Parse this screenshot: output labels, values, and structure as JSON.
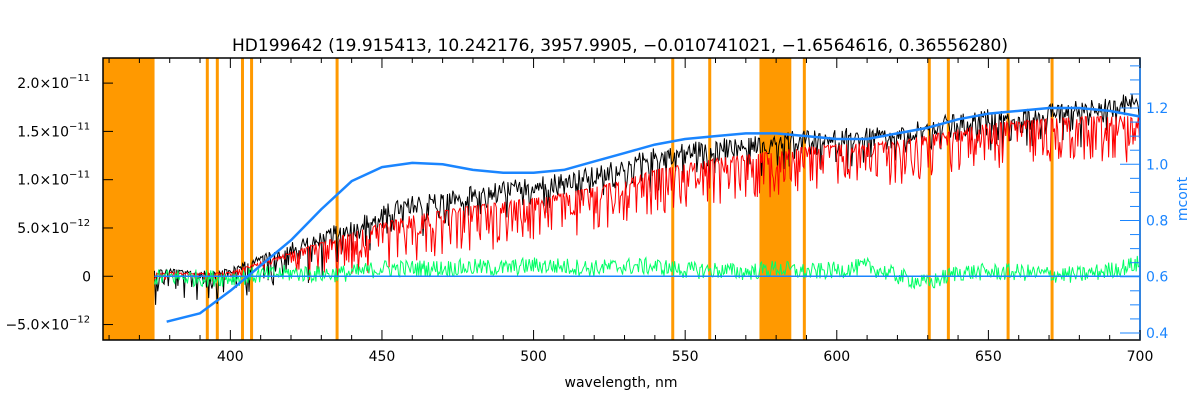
{
  "chart_data": {
    "type": "line",
    "title": "HD199642    (19.915413, 10.242176, 3957.9905, −0.010741021, −1.6564616, 0.36556280)",
    "xlabel": "wavelength, nm",
    "ylabel": "",
    "ylabel_right": "mcont",
    "xlim": [
      358,
      700
    ],
    "ylim": [
      -6.6e-12,
      2.26e-11
    ],
    "ylim_right": [
      0.375,
      1.378
    ],
    "x_ticks": [
      "400",
      "450",
      "500",
      "550",
      "600",
      "650",
      "700"
    ],
    "y_ticks": [
      {
        "value": 2e-11,
        "mant": "2.0×10",
        "exp": "−11"
      },
      {
        "value": 1.5e-11,
        "mant": "1.5×10",
        "exp": "−11"
      },
      {
        "value": 1e-11,
        "mant": "1.0×10",
        "exp": "−11"
      },
      {
        "value": 5e-12,
        "mant": "5.0×10",
        "exp": "−12"
      },
      {
        "value": 0,
        "mant": "0",
        "exp": ""
      },
      {
        "value": -5e-12,
        "mant": "−5.0×10",
        "exp": "−12"
      }
    ],
    "y_ticks_right": [
      "0.4",
      "0.6",
      "0.8",
      "1.0",
      "1.2"
    ],
    "colors": {
      "observed": "#000000",
      "model": "#ff0000",
      "residual": "#00ff66",
      "mcont": "#1a85ff",
      "masked": "#ff9900",
      "highlight": "#ffff00"
    },
    "masked_bands": [
      [
        358,
        375
      ],
      [
        574.5,
        585
      ]
    ],
    "masked_lines": [
      392.4,
      395.7,
      404,
      407,
      435.2,
      545.9,
      558.1,
      589.3,
      630.5,
      636.8,
      656.5,
      671
    ],
    "x": [
      375,
      380,
      390,
      400,
      410,
      420,
      430,
      440,
      450,
      460,
      470,
      480,
      490,
      500,
      510,
      520,
      530,
      540,
      550,
      560,
      570,
      580,
      590,
      600,
      610,
      620,
      630,
      640,
      650,
      660,
      670,
      680,
      690,
      700
    ],
    "series": [
      {
        "role": "observed",
        "axis": "left",
        "values": [
          5e-13,
          6e-13,
          4e-13,
          7e-13,
          2e-12,
          3e-12,
          4e-12,
          5e-12,
          6.5e-12,
          7.5e-12,
          8e-12,
          8.5e-12,
          9e-12,
          9.5e-12,
          1e-11,
          1.05e-11,
          1.15e-11,
          1.25e-11,
          1.3e-11,
          1.35e-11,
          1.35e-11,
          1.4e-11,
          1.45e-11,
          1.45e-11,
          1.45e-11,
          1.45e-11,
          1.55e-11,
          1.6e-11,
          1.65e-11,
          1.65e-11,
          1.7e-11,
          1.75e-11,
          1.8e-11,
          1.85e-11
        ]
      },
      {
        "role": "model",
        "axis": "left",
        "values": [
          3e-13,
          4e-13,
          3e-13,
          4e-13,
          1.5e-12,
          2.5e-12,
          3.5e-12,
          4.5e-12,
          5.5e-12,
          6.3e-12,
          6.8e-12,
          7.3e-12,
          7.7e-12,
          8.1e-12,
          8.6e-12,
          9.2e-12,
          1e-11,
          1.1e-11,
          1.16e-11,
          1.22e-11,
          1.26e-11,
          1.3e-11,
          1.34e-11,
          1.36e-11,
          1.38e-11,
          1.4e-11,
          1.46e-11,
          1.52e-11,
          1.58e-11,
          1.61e-11,
          1.63e-11,
          1.65e-11,
          1.66e-11,
          1.66e-11
        ]
      },
      {
        "role": "residual",
        "axis": "left",
        "values": [
          0,
          1e-13,
          0,
          0,
          3e-13,
          5e-13,
          4e-13,
          5e-13,
          1e-12,
          1e-12,
          1e-12,
          1.1e-12,
          1e-12,
          1.3e-12,
          1.2e-12,
          1e-12,
          1.2e-12,
          1.2e-12,
          8e-13,
          8e-13,
          6e-13,
          1e-12,
          6e-13,
          8e-13,
          1.2e-12,
          2e-13,
          -6e-13,
          6e-13,
          6e-13,
          6e-13,
          4e-13,
          3e-13,
          8e-13,
          1.5e-12
        ]
      },
      {
        "role": "mcont",
        "axis": "right",
        "x": [
          379,
          390,
          400,
          410,
          420,
          430,
          440,
          450,
          460,
          470,
          480,
          490,
          500,
          510,
          520,
          530,
          540,
          550,
          560,
          570,
          580,
          590,
          600,
          610,
          620,
          630,
          640,
          650,
          660,
          670,
          680,
          690,
          700
        ],
        "values": [
          0.44,
          0.47,
          0.55,
          0.64,
          0.73,
          0.84,
          0.94,
          0.99,
          1.005,
          1.0,
          0.98,
          0.97,
          0.97,
          0.98,
          1.01,
          1.04,
          1.07,
          1.09,
          1.1,
          1.11,
          1.11,
          1.1,
          1.09,
          1.09,
          1.11,
          1.13,
          1.16,
          1.18,
          1.19,
          1.2,
          1.2,
          1.19,
          1.17
        ]
      }
    ]
  }
}
